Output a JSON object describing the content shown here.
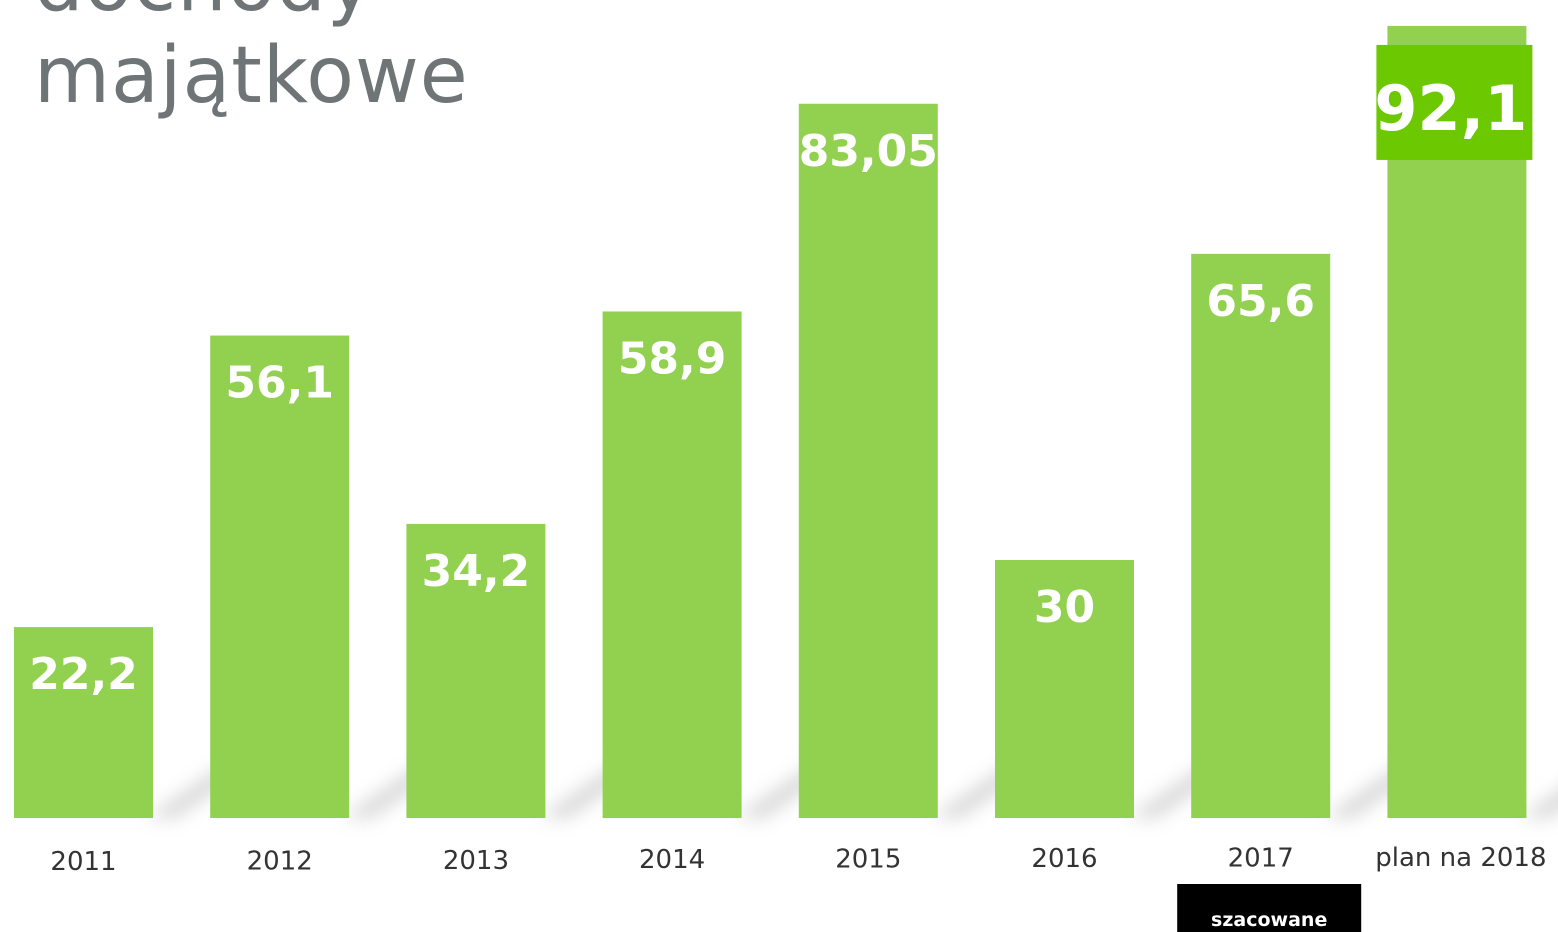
{
  "chart_data": {
    "type": "bar",
    "title_lines": [
      "dochody",
      "majątkowe"
    ],
    "categories": [
      "2011",
      "2012",
      "2013",
      "2014",
      "2015",
      "2016",
      "2017",
      "plan na 2018"
    ],
    "values": [
      22.2,
      56.1,
      34.2,
      58.9,
      83.05,
      30,
      65.6,
      92.1
    ],
    "value_labels": [
      "22,2",
      "56,1",
      "34,2",
      "58,9",
      "83,05",
      "30",
      "65,6",
      "92,1"
    ],
    "xlabel": "",
    "ylabel": "",
    "ylim": [
      0,
      95
    ],
    "grid": false,
    "legend": "none",
    "bar_color": "#92d050",
    "highlight_label_color": "#6cc800",
    "highlight_index": 7,
    "tag": {
      "text": "szacowane",
      "category_index": 6,
      "background": "#000000"
    }
  }
}
